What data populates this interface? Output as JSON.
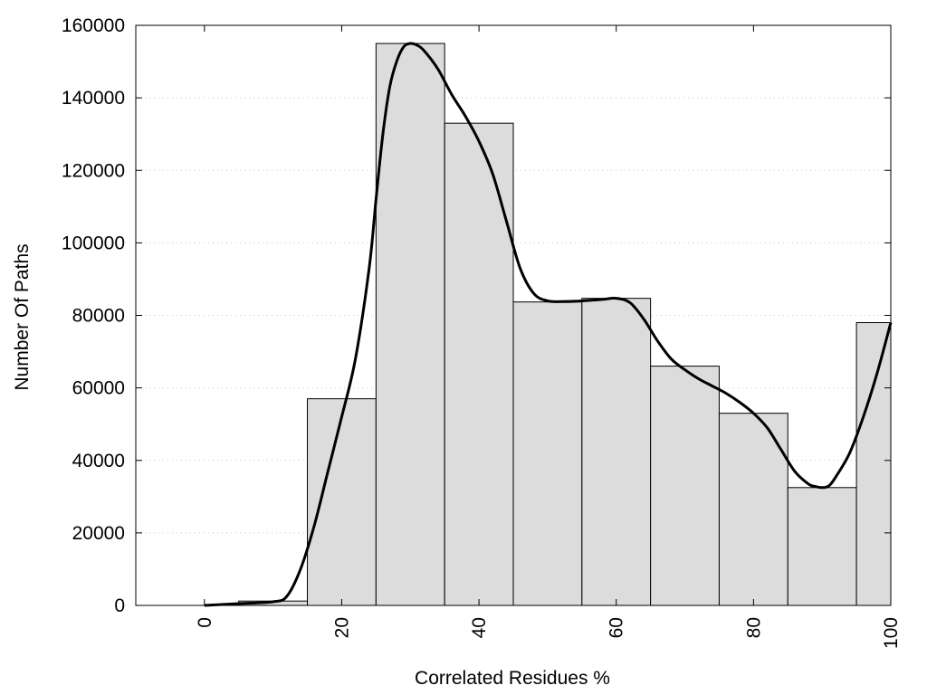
{
  "chart_data": {
    "type": "bar",
    "title": "",
    "xlabel": "Correlated Residues %",
    "ylabel": "Number Of Paths",
    "xlim": [
      -10,
      100
    ],
    "ylim": [
      0,
      160000
    ],
    "x_ticks": [
      0,
      20,
      40,
      60,
      80,
      100
    ],
    "y_ticks": [
      0,
      20000,
      40000,
      60000,
      80000,
      100000,
      120000,
      140000,
      160000
    ],
    "x_tick_labels": [
      "0",
      "20",
      "40",
      "60",
      "80",
      "100"
    ],
    "y_tick_labels": [
      "0",
      "20000",
      "40000",
      "60000",
      "80000",
      "100000",
      "120000",
      "140000",
      "160000"
    ],
    "grid": "horizontal dotted",
    "bins": [
      {
        "from": 0,
        "to": 5,
        "value": 100
      },
      {
        "from": 5,
        "to": 15,
        "value": 1200
      },
      {
        "from": 15,
        "to": 25,
        "value": 57000
      },
      {
        "from": 25,
        "to": 35,
        "value": 155000
      },
      {
        "from": 35,
        "to": 45,
        "value": 133000
      },
      {
        "from": 45,
        "to": 55,
        "value": 83700
      },
      {
        "from": 55,
        "to": 65,
        "value": 84700
      },
      {
        "from": 65,
        "to": 75,
        "value": 66000
      },
      {
        "from": 75,
        "to": 85,
        "value": 53000
      },
      {
        "from": 85,
        "to": 95,
        "value": 32500
      },
      {
        "from": 95,
        "to": 100,
        "value": 78000
      }
    ],
    "curve": {
      "x": [
        0,
        5,
        10,
        12,
        14,
        16,
        18,
        20,
        22,
        24,
        25,
        26,
        27,
        28,
        29,
        30,
        31,
        32,
        34,
        36,
        38,
        40,
        42,
        44,
        46,
        48,
        50,
        52,
        55,
        58,
        60,
        62,
        64,
        66,
        68,
        70,
        72,
        74,
        76,
        78,
        80,
        82,
        84,
        86,
        88,
        89,
        90,
        91,
        92,
        94,
        96,
        98,
        100
      ],
      "y": [
        0,
        500,
        1000,
        2500,
        10000,
        22000,
        37000,
        52000,
        68000,
        93000,
        112000,
        130000,
        143000,
        150000,
        154000,
        155000,
        154500,
        153000,
        148000,
        141000,
        135000,
        128000,
        119000,
        106000,
        93000,
        86000,
        84000,
        83800,
        84000,
        84400,
        84700,
        83500,
        79000,
        73000,
        68000,
        65000,
        62500,
        60500,
        58500,
        56000,
        53000,
        49000,
        43000,
        37000,
        33500,
        32800,
        32500,
        33000,
        35500,
        42000,
        52000,
        64000,
        78000
      ]
    }
  }
}
